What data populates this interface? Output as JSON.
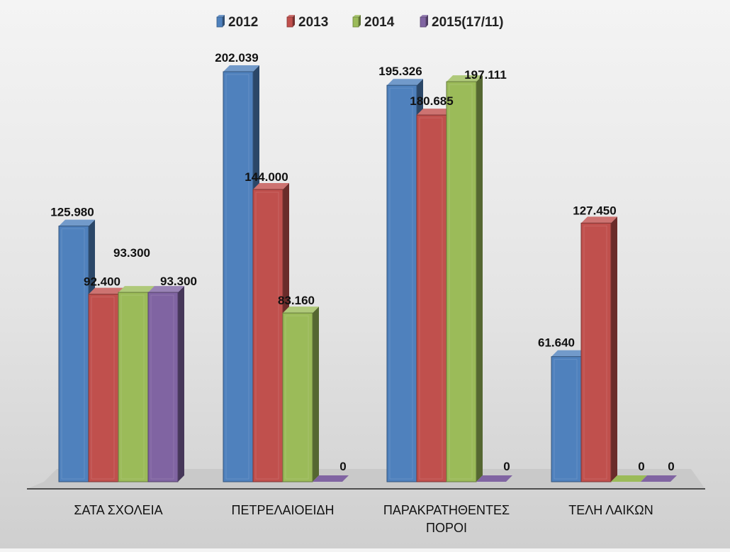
{
  "chart_data": {
    "type": "bar",
    "categories": [
      "ΣΑΤΑ ΣΧΟΛΕΙΑ",
      "ΠΕΤΡΕΛΑΙΟΕΙΔΗ",
      "ΠΑΡΑΚΡΑΤΗΘΕΝΤΕΣ ΠΟΡΟΙ",
      "ΤΕΛΗ ΛΑΙΚΩΝ"
    ],
    "series": [
      {
        "name": "2012",
        "values": [
          125980,
          202039,
          195326,
          61640
        ],
        "labels": [
          "125.980",
          "202.039",
          "195.326",
          "61.640"
        ],
        "color": "#4f81bd"
      },
      {
        "name": "2013",
        "values": [
          92400,
          144000,
          180685,
          127450
        ],
        "labels": [
          "92.400",
          "144.000",
          "180.685",
          "127.450"
        ],
        "color": "#c0504d"
      },
      {
        "name": "2014",
        "values": [
          93300,
          83160,
          197111,
          0
        ],
        "labels": [
          "93.300",
          "83.160",
          "197.111",
          "0"
        ],
        "color": "#9bbb59"
      },
      {
        "name": "2015(17/11)",
        "values": [
          93300,
          0,
          0,
          0
        ],
        "labels": [
          "93.300",
          "0",
          "0",
          "0"
        ],
        "color": "#8064a2"
      }
    ],
    "title": "",
    "xlabel": "",
    "ylabel": "",
    "ylim": [
      0,
      210000
    ],
    "grid": false,
    "legend_position": "top-center"
  }
}
